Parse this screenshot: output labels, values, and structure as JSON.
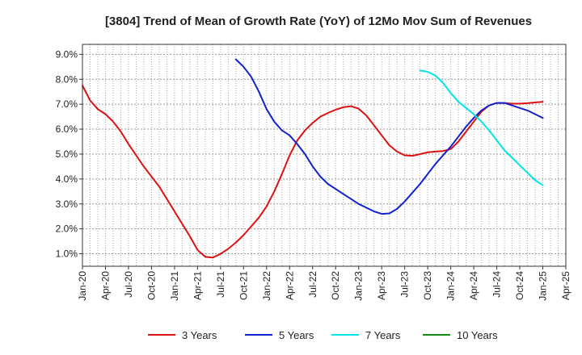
{
  "chart_data": {
    "type": "line",
    "title": "[3804]  Trend of Mean of Growth Rate (YoY) of 12Mo Mov Sum of Revenues",
    "xlabel": "",
    "ylabel": "",
    "x_ticks": [
      "Jan-20",
      "Apr-20",
      "Jul-20",
      "Oct-20",
      "Jan-21",
      "Apr-21",
      "Jul-21",
      "Oct-21",
      "Jan-22",
      "Apr-22",
      "Jul-22",
      "Oct-22",
      "Jan-23",
      "Apr-23",
      "Jul-23",
      "Oct-23",
      "Jan-24",
      "Apr-24",
      "Jul-24",
      "Oct-24",
      "Jan-25",
      "Apr-25"
    ],
    "xlim": [
      0,
      63
    ],
    "y_ticks": [
      "1.0%",
      "2.0%",
      "3.0%",
      "4.0%",
      "5.0%",
      "6.0%",
      "7.0%",
      "8.0%",
      "9.0%"
    ],
    "ylim": [
      0.5,
      9.4
    ],
    "grid": true,
    "legend_position": "bottom",
    "series": [
      {
        "name": "3 Years",
        "color": "#dd1111",
        "x": [
          0,
          1,
          2,
          3,
          4,
          5,
          6,
          7,
          8,
          9,
          10,
          11,
          12,
          13,
          14,
          15,
          16,
          17,
          18,
          19,
          20,
          21,
          22,
          23,
          24,
          25,
          26,
          27,
          28,
          29,
          30,
          31,
          32,
          33,
          34,
          35,
          36,
          37,
          38,
          39,
          40,
          41,
          42,
          43,
          44,
          45,
          46,
          47,
          48,
          49,
          50,
          51,
          52,
          53,
          54,
          55,
          56,
          57,
          58,
          59,
          60
        ],
        "values": [
          7.75,
          7.15,
          6.8,
          6.6,
          6.3,
          5.9,
          5.4,
          4.95,
          4.5,
          4.1,
          3.7,
          3.2,
          2.7,
          2.2,
          1.7,
          1.15,
          0.88,
          0.85,
          1.0,
          1.2,
          1.45,
          1.75,
          2.1,
          2.45,
          2.9,
          3.5,
          4.2,
          4.95,
          5.55,
          5.95,
          6.25,
          6.5,
          6.65,
          6.78,
          6.88,
          6.92,
          6.82,
          6.55,
          6.15,
          5.75,
          5.35,
          5.1,
          4.95,
          4.93,
          5.0,
          5.07,
          5.1,
          5.12,
          5.2,
          5.5,
          5.9,
          6.3,
          6.7,
          6.95,
          7.05,
          7.05,
          7.02,
          7.02,
          7.04,
          7.07,
          7.1
        ]
      },
      {
        "name": "5 Years",
        "color": "#1122cc",
        "x": [
          20,
          21,
          22,
          23,
          24,
          25,
          26,
          27,
          28,
          29,
          30,
          31,
          32,
          33,
          34,
          35,
          36,
          37,
          38,
          39,
          40,
          41,
          42,
          43,
          44,
          45,
          46,
          47,
          48,
          49,
          50,
          51,
          52,
          53,
          54,
          55,
          56,
          57,
          58,
          59,
          60
        ],
        "values": [
          8.8,
          8.5,
          8.1,
          7.5,
          6.8,
          6.3,
          5.95,
          5.75,
          5.4,
          5.0,
          4.5,
          4.1,
          3.8,
          3.6,
          3.4,
          3.2,
          3.0,
          2.85,
          2.7,
          2.6,
          2.62,
          2.8,
          3.1,
          3.45,
          3.8,
          4.2,
          4.6,
          4.95,
          5.3,
          5.7,
          6.1,
          6.45,
          6.75,
          6.95,
          7.05,
          7.05,
          6.95,
          6.85,
          6.75,
          6.6,
          6.45
        ]
      },
      {
        "name": "7 Years",
        "color": "#00e5e5",
        "x": [
          44,
          45,
          46,
          47,
          48,
          49,
          50,
          51,
          52,
          53,
          54,
          55,
          56,
          57,
          58,
          59,
          60
        ],
        "values": [
          8.35,
          8.3,
          8.15,
          7.85,
          7.45,
          7.1,
          6.85,
          6.6,
          6.3,
          5.95,
          5.55,
          5.15,
          4.85,
          4.55,
          4.25,
          3.95,
          3.75
        ]
      },
      {
        "name": "10 Years",
        "color": "#118811",
        "x": [],
        "values": []
      }
    ]
  }
}
